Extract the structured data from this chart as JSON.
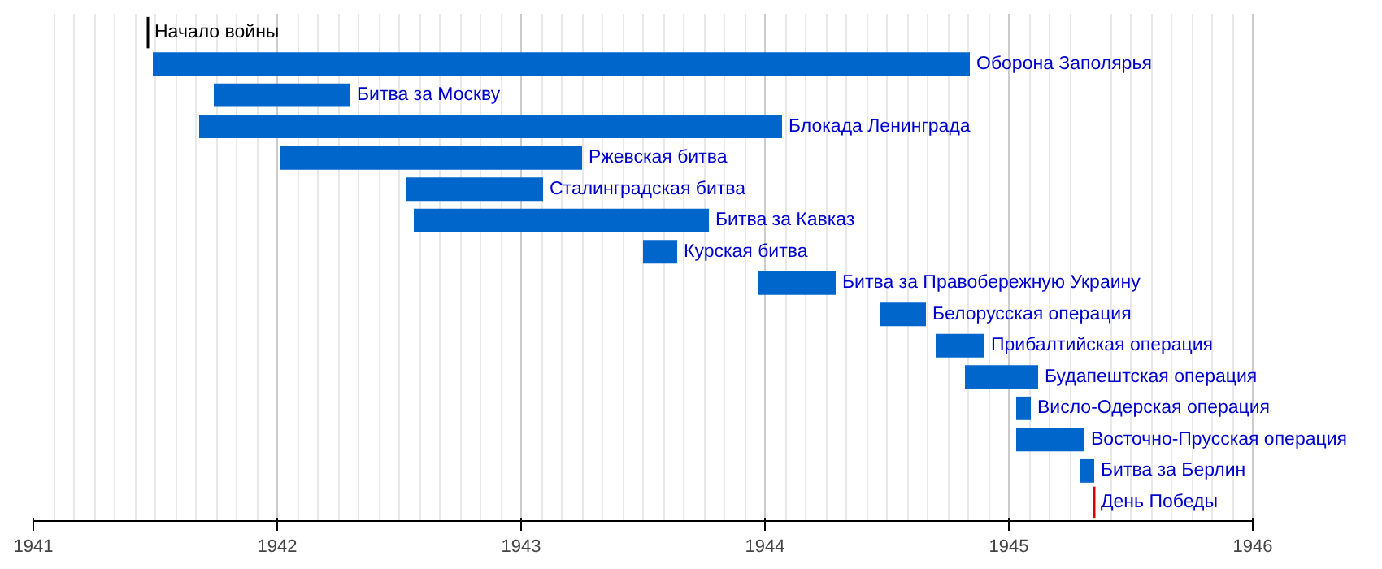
{
  "chart_data": {
    "type": "bar",
    "orientation": "horizontal",
    "categories": [
      "Оборона Заполярья",
      "Битва за Москву",
      "Блокада Ленинграда",
      "Ржевская битва",
      "Сталинградская битва",
      "Битва за Кавказ",
      "Курская битва",
      "Битва за Правобережную Украину",
      "Белорусская операция",
      "Прибалтийская операция",
      "Будапештская операция",
      "Висло-Одерская операция",
      "Восточно-Прусская операция",
      "Битва за Берлин"
    ],
    "base": [
      1941.49,
      1941.74,
      1941.68,
      1942.01,
      1942.53,
      1942.56,
      1943.5,
      1943.97,
      1944.47,
      1944.7,
      1944.82,
      1945.03,
      1945.03,
      1945.29
    ],
    "values": [
      3.35,
      0.56,
      2.39,
      1.24,
      0.56,
      1.21,
      0.14,
      0.32,
      0.19,
      0.2,
      0.3,
      0.06,
      0.28,
      0.06
    ],
    "color": "#0066cc",
    "xlim": [
      1941,
      1946
    ],
    "xticks": [
      1941,
      1942,
      1943,
      1944,
      1945,
      1946
    ],
    "grid": "x",
    "ref_lines": [
      {
        "axis": "x",
        "value": 1941.47,
        "label": "Начало войны",
        "color": "#000000"
      },
      {
        "axis": "x",
        "value": 1945.35,
        "label": "День Победы",
        "color": "#dd0000"
      }
    ]
  }
}
